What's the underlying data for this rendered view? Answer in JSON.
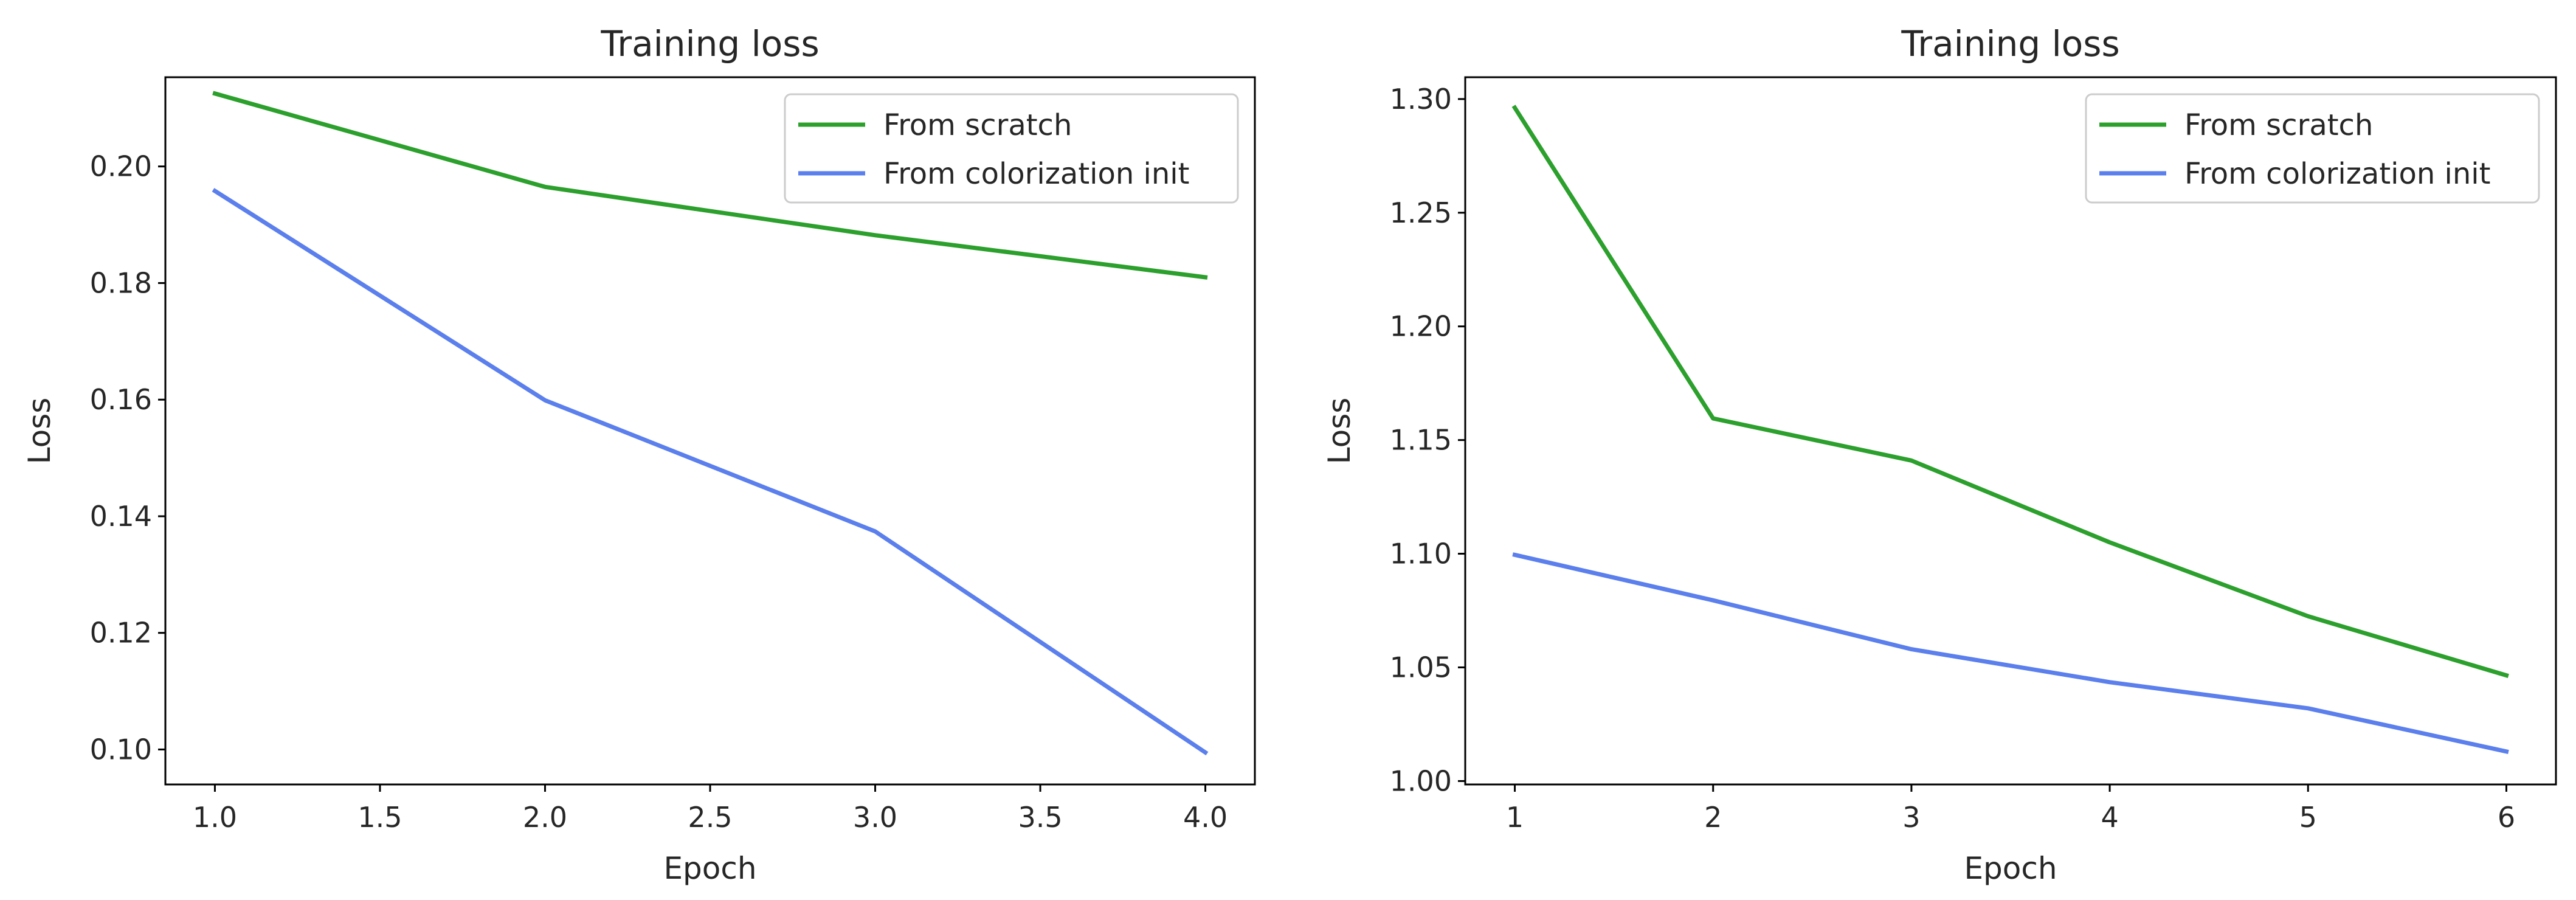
{
  "chart_data": [
    {
      "type": "line",
      "title": "Training loss",
      "xlabel": "Epoch",
      "ylabel": "Loss",
      "xlim": [
        0.85,
        4.15
      ],
      "ylim": [
        0.094,
        0.2153
      ],
      "x_ticks": [
        1.0,
        1.5,
        2.0,
        2.5,
        3.0,
        3.5,
        4.0
      ],
      "y_ticks": [
        0.1,
        0.12,
        0.14,
        0.16,
        0.18,
        0.2
      ],
      "x_tick_labels": [
        "1.0",
        "1.5",
        "2.0",
        "2.5",
        "3.0",
        "3.5",
        "4.0"
      ],
      "y_tick_labels": [
        "0.10",
        "0.12",
        "0.14",
        "0.16",
        "0.18",
        "0.20"
      ],
      "legend_position": "top-right",
      "grid": false,
      "series": [
        {
          "name": "From scratch",
          "color": "#2ca02c",
          "x": [
            1,
            2,
            3,
            4
          ],
          "values": [
            0.2125,
            0.1965,
            0.1882,
            0.181
          ]
        },
        {
          "name": "From colorization init",
          "color": "#5b7fec",
          "x": [
            1,
            2,
            3,
            4
          ],
          "values": [
            0.1958,
            0.1599,
            0.1374,
            0.0995
          ]
        }
      ]
    },
    {
      "type": "line",
      "title": "Training loss",
      "xlabel": "Epoch",
      "ylabel": "Loss",
      "xlim": [
        0.75,
        6.25
      ],
      "ylim": [
        0.9985,
        1.3096
      ],
      "x_ticks": [
        1,
        2,
        3,
        4,
        5,
        6
      ],
      "y_ticks": [
        1.0,
        1.05,
        1.1,
        1.15,
        1.2,
        1.25,
        1.3
      ],
      "x_tick_labels": [
        "1",
        "2",
        "3",
        "4",
        "5",
        "6"
      ],
      "y_tick_labels": [
        "1.00",
        "1.05",
        "1.10",
        "1.15",
        "1.20",
        "1.25",
        "1.30"
      ],
      "legend_position": "top-right",
      "grid": false,
      "series": [
        {
          "name": "From scratch",
          "color": "#2ca02c",
          "x": [
            1,
            2,
            3,
            4,
            5,
            6
          ],
          "values": [
            1.2962,
            1.1595,
            1.141,
            1.105,
            1.0725,
            1.0465
          ]
        },
        {
          "name": "From colorization init",
          "color": "#5b7fec",
          "x": [
            1,
            2,
            3,
            4,
            5,
            6
          ],
          "values": [
            1.0995,
            1.0795,
            1.058,
            1.0435,
            1.032,
            1.013
          ]
        }
      ]
    }
  ]
}
